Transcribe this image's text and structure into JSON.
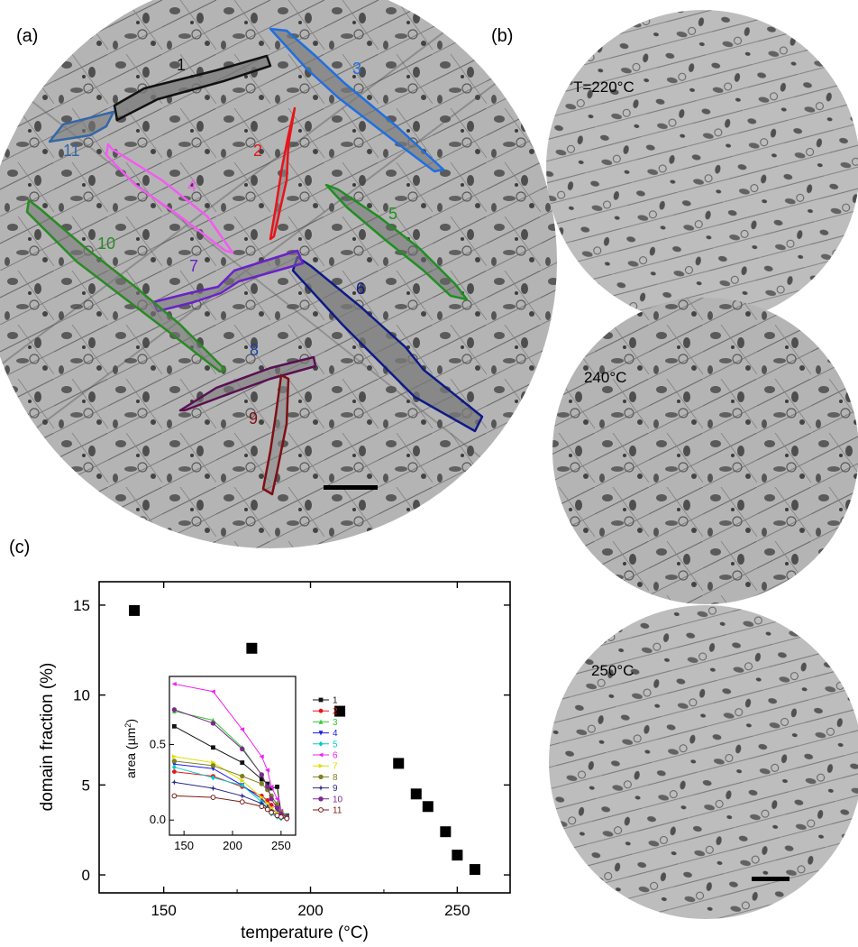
{
  "panels": {
    "a": "(a)",
    "b": "(b)",
    "c": "(c)"
  },
  "micrograph_a": {
    "domains": [
      {
        "label": "1",
        "color": "#111111"
      },
      {
        "label": "2",
        "color": "#e8141a"
      },
      {
        "label": "3",
        "color": "#1f6fe0"
      },
      {
        "label": "4",
        "color": "#f25cf0"
      },
      {
        "label": "5",
        "color": "#1f8f22"
      },
      {
        "label": "6",
        "color": "#0d1a86"
      },
      {
        "label": "7",
        "color": "#6a22c9"
      },
      {
        "label": "8",
        "color": "#1b3f9c"
      },
      {
        "label": "9",
        "color": "#7e0f14"
      },
      {
        "label": "10",
        "color": "#2a8a23"
      },
      {
        "label": "11",
        "color": "#3367a8"
      }
    ]
  },
  "micrographs_b": {
    "temps": [
      "T=220°C",
      "240°C",
      "250°C"
    ]
  },
  "chart_data": [
    {
      "type": "scatter",
      "xlabel": "temperature (°C)",
      "ylabel": "domain fraction (%)",
      "xlim": [
        128,
        268
      ],
      "ylim": [
        -1,
        16.3
      ],
      "xticks": [
        150,
        200,
        250
      ],
      "yticks": [
        0,
        5,
        10,
        15
      ],
      "series": [
        {
          "x": [
            140,
            180,
            210,
            230,
            236,
            240,
            246,
            250,
            256
          ],
          "y": [
            14.7,
            12.6,
            9.1,
            6.2,
            4.5,
            3.8,
            2.4,
            1.1,
            0.3
          ]
        }
      ]
    },
    {
      "type": "line",
      "xlabel": "",
      "ylabel": "area (µm²)",
      "xlim": [
        135,
        265
      ],
      "ylim": [
        -0.1,
        0.95
      ],
      "xticks": [
        150,
        200,
        250
      ],
      "yticks": [
        0.0,
        0.5
      ],
      "x": [
        140,
        180,
        210,
        230,
        236,
        240,
        246,
        250,
        256
      ],
      "series": [
        {
          "name": "1",
          "color": "#111111",
          "marker": "square",
          "values": [
            0.62,
            0.48,
            0.38,
            0.27,
            0.24,
            0.21,
            0.22,
            0.05,
            0.03
          ]
        },
        {
          "name": "2",
          "color": "#e8141a",
          "marker": "circle",
          "values": [
            0.32,
            0.29,
            0.22,
            0.16,
            0.13,
            0.1,
            0.08,
            0.04,
            0.02
          ]
        },
        {
          "name": "3",
          "color": "#33cc33",
          "marker": "triangle",
          "values": [
            0.72,
            0.66,
            0.48,
            0.3,
            0.22,
            0.15,
            0.11,
            0.06,
            0.03
          ]
        },
        {
          "name": "4",
          "color": "#1a1aee",
          "marker": "tri-down",
          "values": [
            0.37,
            0.34,
            0.23,
            0.14,
            0.1,
            0.07,
            0.05,
            0.03,
            0.02
          ]
        },
        {
          "name": "5",
          "color": "#00cccc",
          "marker": "diamond",
          "values": [
            0.35,
            0.28,
            0.23,
            0.12,
            0.08,
            0.04,
            0.02,
            0.01,
            0.01
          ]
        },
        {
          "name": "6",
          "color": "#ee22ee",
          "marker": "tri-left",
          "values": [
            0.9,
            0.85,
            0.6,
            0.42,
            0.33,
            0.22,
            0.14,
            0.06,
            0.02
          ]
        },
        {
          "name": "7",
          "color": "#dddd00",
          "marker": "tri-right",
          "values": [
            0.42,
            0.38,
            0.26,
            0.15,
            0.11,
            0.08,
            0.05,
            0.03,
            0.02
          ]
        },
        {
          "name": "8",
          "color": "#808020",
          "marker": "hexagon",
          "values": [
            0.39,
            0.36,
            0.29,
            0.24,
            0.2,
            0.16,
            0.1,
            0.05,
            0.02
          ]
        },
        {
          "name": "9",
          "color": "#2a2a8a",
          "marker": "star",
          "values": [
            0.25,
            0.21,
            0.16,
            0.11,
            0.08,
            0.05,
            0.03,
            0.02,
            0.01
          ]
        },
        {
          "name": "10",
          "color": "#7a2a8a",
          "marker": "pentagon",
          "values": [
            0.73,
            0.64,
            0.47,
            0.3,
            0.22,
            0.14,
            0.08,
            0.04,
            0.02
          ]
        },
        {
          "name": "11",
          "color": "#7a1a1a",
          "marker": "circle-open",
          "values": [
            0.16,
            0.15,
            0.12,
            0.09,
            0.07,
            0.05,
            0.03,
            0.02,
            0.01
          ]
        }
      ]
    }
  ]
}
